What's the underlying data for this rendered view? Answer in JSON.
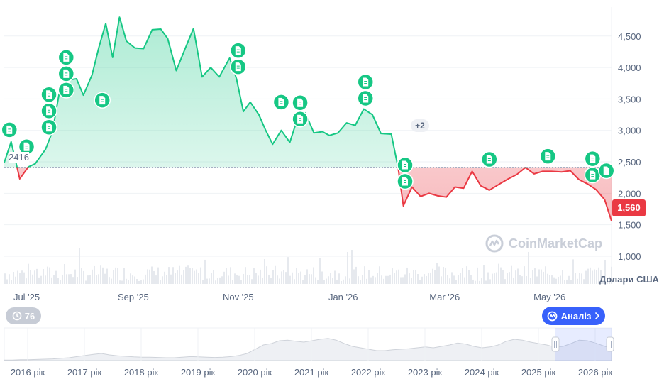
{
  "chart_data": {
    "type": "area",
    "currency_label": "Долари США",
    "current_price_label": "1,560",
    "reference_value": 2416,
    "reference_label": "2416",
    "ylim": [
      560,
      4960
    ],
    "y_ticks": [
      {
        "value": 1000,
        "label": "1,000"
      },
      {
        "value": 1500,
        "label": "1,500"
      },
      {
        "value": 2000,
        "label": "2,000"
      },
      {
        "value": 2500,
        "label": "2,500"
      },
      {
        "value": 3000,
        "label": "3,000"
      },
      {
        "value": 3500,
        "label": "3,500"
      },
      {
        "value": 4000,
        "label": "4,000"
      },
      {
        "value": 4500,
        "label": "4,500"
      }
    ],
    "x_range": [
      "2025-06-18",
      "2026-06-06"
    ],
    "x_ticks": [
      {
        "date": "2025-07-01",
        "label": "Jul '25"
      },
      {
        "date": "2025-09-01",
        "label": "Sep '25"
      },
      {
        "date": "2025-11-01",
        "label": "Nov '25"
      },
      {
        "date": "2026-01-01",
        "label": "Jan '26"
      },
      {
        "date": "2026-03-01",
        "label": "Mar '26"
      },
      {
        "date": "2026-05-01",
        "label": "May '26"
      }
    ],
    "series": [
      {
        "points": [
          [
            "2025-06-18",
            2490
          ],
          [
            "2025-06-22",
            2820
          ],
          [
            "2025-06-27",
            2230
          ],
          [
            "2025-07-02",
            2420
          ],
          [
            "2025-07-06",
            2470
          ],
          [
            "2025-07-12",
            2700
          ],
          [
            "2025-07-16",
            2980
          ],
          [
            "2025-07-20",
            3600
          ],
          [
            "2025-07-25",
            3800
          ],
          [
            "2025-07-30",
            3820
          ],
          [
            "2025-08-03",
            3560
          ],
          [
            "2025-08-08",
            3880
          ],
          [
            "2025-08-12",
            4320
          ],
          [
            "2025-08-16",
            4700
          ],
          [
            "2025-08-20",
            4160
          ],
          [
            "2025-08-24",
            4800
          ],
          [
            "2025-08-28",
            4420
          ],
          [
            "2025-09-02",
            4310
          ],
          [
            "2025-09-07",
            4300
          ],
          [
            "2025-09-12",
            4600
          ],
          [
            "2025-09-17",
            4610
          ],
          [
            "2025-09-21",
            4460
          ],
          [
            "2025-09-26",
            3950
          ],
          [
            "2025-10-01",
            4290
          ],
          [
            "2025-10-06",
            4620
          ],
          [
            "2025-10-11",
            3850
          ],
          [
            "2025-10-16",
            4000
          ],
          [
            "2025-10-21",
            3850
          ],
          [
            "2025-10-27",
            4150
          ],
          [
            "2025-10-31",
            3820
          ],
          [
            "2025-11-04",
            3300
          ],
          [
            "2025-11-08",
            3450
          ],
          [
            "2025-11-13",
            3250
          ],
          [
            "2025-11-17",
            3000
          ],
          [
            "2025-11-21",
            2780
          ],
          [
            "2025-11-26",
            3000
          ],
          [
            "2025-12-01",
            2810
          ],
          [
            "2025-12-05",
            3150
          ],
          [
            "2025-12-10",
            3280
          ],
          [
            "2025-12-15",
            2960
          ],
          [
            "2025-12-20",
            2980
          ],
          [
            "2025-12-24",
            2920
          ],
          [
            "2025-12-29",
            2960
          ],
          [
            "2026-01-03",
            3120
          ],
          [
            "2026-01-08",
            3080
          ],
          [
            "2026-01-13",
            3340
          ],
          [
            "2026-01-18",
            3250
          ],
          [
            "2026-01-23",
            2950
          ],
          [
            "2026-01-29",
            2940
          ],
          [
            "2026-02-02",
            2400
          ],
          [
            "2026-02-05",
            1800
          ],
          [
            "2026-02-10",
            2100
          ],
          [
            "2026-02-15",
            1950
          ],
          [
            "2026-02-20",
            2000
          ],
          [
            "2026-02-25",
            1960
          ],
          [
            "2026-03-02",
            1940
          ],
          [
            "2026-03-07",
            2100
          ],
          [
            "2026-03-12",
            2080
          ],
          [
            "2026-03-17",
            2350
          ],
          [
            "2026-03-22",
            2120
          ],
          [
            "2026-03-27",
            2050
          ],
          [
            "2026-04-02",
            2150
          ],
          [
            "2026-04-07",
            2230
          ],
          [
            "2026-04-12",
            2300
          ],
          [
            "2026-04-17",
            2410
          ],
          [
            "2026-04-22",
            2310
          ],
          [
            "2026-04-27",
            2350
          ],
          [
            "2026-05-02",
            2350
          ],
          [
            "2026-05-08",
            2340
          ],
          [
            "2026-05-13",
            2360
          ],
          [
            "2026-05-18",
            2220
          ],
          [
            "2026-05-23",
            2150
          ],
          [
            "2026-05-28",
            2060
          ],
          [
            "2026-06-02",
            1900
          ],
          [
            "2026-06-06",
            1560
          ]
        ]
      }
    ],
    "markers": [
      {
        "date": "2025-06-21",
        "value": 3010,
        "count": 1
      },
      {
        "date": "2025-07-01",
        "value": 2740,
        "count": 1
      },
      {
        "date": "2025-07-14",
        "value": 3570,
        "count": 3
      },
      {
        "date": "2025-07-24",
        "value": 4160,
        "count": 3
      },
      {
        "date": "2025-08-14",
        "value": 3480,
        "count": 1
      },
      {
        "date": "2025-11-01",
        "value": 4270,
        "count": 2
      },
      {
        "date": "2025-11-26",
        "value": 3450,
        "count": 1
      },
      {
        "date": "2025-12-07",
        "value": 3440,
        "count": 2
      },
      {
        "date": "2026-01-14",
        "value": 3770,
        "count": 2
      },
      {
        "date": "2026-02-06",
        "value": 2450,
        "count": 2,
        "extra_label": "+2"
      },
      {
        "date": "2026-03-27",
        "value": 2540,
        "count": 1
      },
      {
        "date": "2026-04-30",
        "value": 2590,
        "count": 1
      },
      {
        "date": "2026-05-26",
        "value": 2550,
        "count": 2
      },
      {
        "date": "2026-06-03",
        "value": 2360,
        "count": 1
      }
    ],
    "colors": {
      "up": "#16c784",
      "down": "#ea3943",
      "up_fill": "#d4f5e6",
      "down_fill": "#fbd9dc",
      "grid": "#eff2f5",
      "marker": "#16c784",
      "volume": "#e6e9ee",
      "navigator": "#cfd3da"
    },
    "navigator": {
      "year_labels": [
        "2016 рік",
        "2017 рік",
        "2018 рік",
        "2019 рік",
        "2020 рік",
        "2021 рік",
        "2022 рік",
        "2023 рік",
        "2024 рік",
        "2025 рік",
        "2026 рік"
      ],
      "profile": [
        0.02,
        0.02,
        0.03,
        0.03,
        0.04,
        0.05,
        0.06,
        0.08,
        0.1,
        0.14,
        0.18,
        0.22,
        0.25,
        0.2,
        0.17,
        0.15,
        0.13,
        0.12,
        0.12,
        0.11,
        0.1,
        0.1,
        0.12,
        0.14,
        0.13,
        0.12,
        0.11,
        0.12,
        0.14,
        0.18,
        0.25,
        0.4,
        0.55,
        0.6,
        0.7,
        0.72,
        0.68,
        0.65,
        0.7,
        0.75,
        0.78,
        0.72,
        0.6,
        0.5,
        0.45,
        0.4,
        0.35,
        0.35,
        0.38,
        0.4,
        0.42,
        0.45,
        0.48,
        0.45,
        0.5,
        0.55,
        0.62,
        0.58,
        0.5,
        0.45,
        0.48,
        0.55,
        0.68,
        0.75,
        0.72,
        0.65,
        0.6,
        0.55,
        0.48,
        0.5,
        0.6,
        0.72,
        0.7,
        0.62,
        0.52,
        0.42
      ]
    }
  },
  "ui": {
    "brand_name": "CoinMarketCap",
    "history_count": "76",
    "analysis_label": "Аналіз"
  }
}
